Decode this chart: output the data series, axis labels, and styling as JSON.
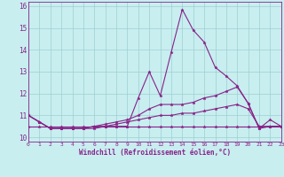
{
  "xlabel": "Windchill (Refroidissement éolien,°C)",
  "background_color": "#c8eef0",
  "grid_color": "#9dcfcf",
  "line_color": "#882288",
  "xlim": [
    0,
    23
  ],
  "ylim": [
    9.8,
    16.2
  ],
  "yticks": [
    10,
    11,
    12,
    13,
    14,
    15,
    16
  ],
  "xticks": [
    0,
    1,
    2,
    3,
    4,
    5,
    6,
    7,
    8,
    9,
    10,
    11,
    12,
    13,
    14,
    15,
    16,
    17,
    18,
    19,
    20,
    21,
    22,
    23
  ],
  "series": [
    [
      11.0,
      10.7,
      10.4,
      10.4,
      10.4,
      10.4,
      10.4,
      10.5,
      10.5,
      10.5,
      11.8,
      13.0,
      11.9,
      13.9,
      15.85,
      14.9,
      14.35,
      13.2,
      12.8,
      12.35,
      11.55,
      10.4,
      10.8,
      10.5
    ],
    [
      11.0,
      10.7,
      10.4,
      10.4,
      10.4,
      10.4,
      10.5,
      10.6,
      10.7,
      10.8,
      11.0,
      11.3,
      11.5,
      11.5,
      11.5,
      11.6,
      11.8,
      11.9,
      12.1,
      12.3,
      11.55,
      10.4,
      10.5,
      10.5
    ],
    [
      11.0,
      10.7,
      10.4,
      10.4,
      10.4,
      10.4,
      10.5,
      10.5,
      10.6,
      10.7,
      10.8,
      10.9,
      11.0,
      11.0,
      11.1,
      11.1,
      11.2,
      11.3,
      11.4,
      11.5,
      11.3,
      10.5,
      10.5,
      10.5
    ],
    [
      10.5,
      10.5,
      10.5,
      10.5,
      10.5,
      10.5,
      10.5,
      10.5,
      10.5,
      10.5,
      10.5,
      10.5,
      10.5,
      10.5,
      10.5,
      10.5,
      10.5,
      10.5,
      10.5,
      10.5,
      10.5,
      10.5,
      10.5,
      10.5
    ]
  ]
}
